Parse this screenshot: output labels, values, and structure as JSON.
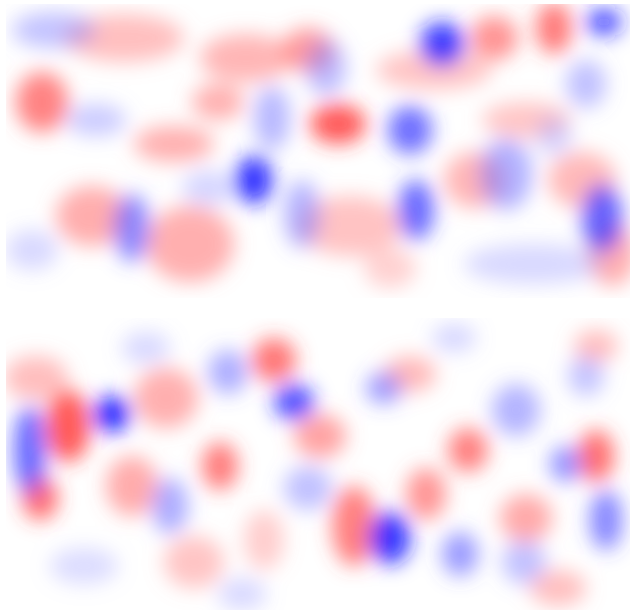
{
  "figure": {
    "colors": {
      "positive": "#ff2b2b",
      "negative": "#1f2bff",
      "neutral": "#ffffff"
    },
    "panels": [
      {
        "id": "field-top"
      },
      {
        "id": "field-bottom"
      }
    ]
  }
}
